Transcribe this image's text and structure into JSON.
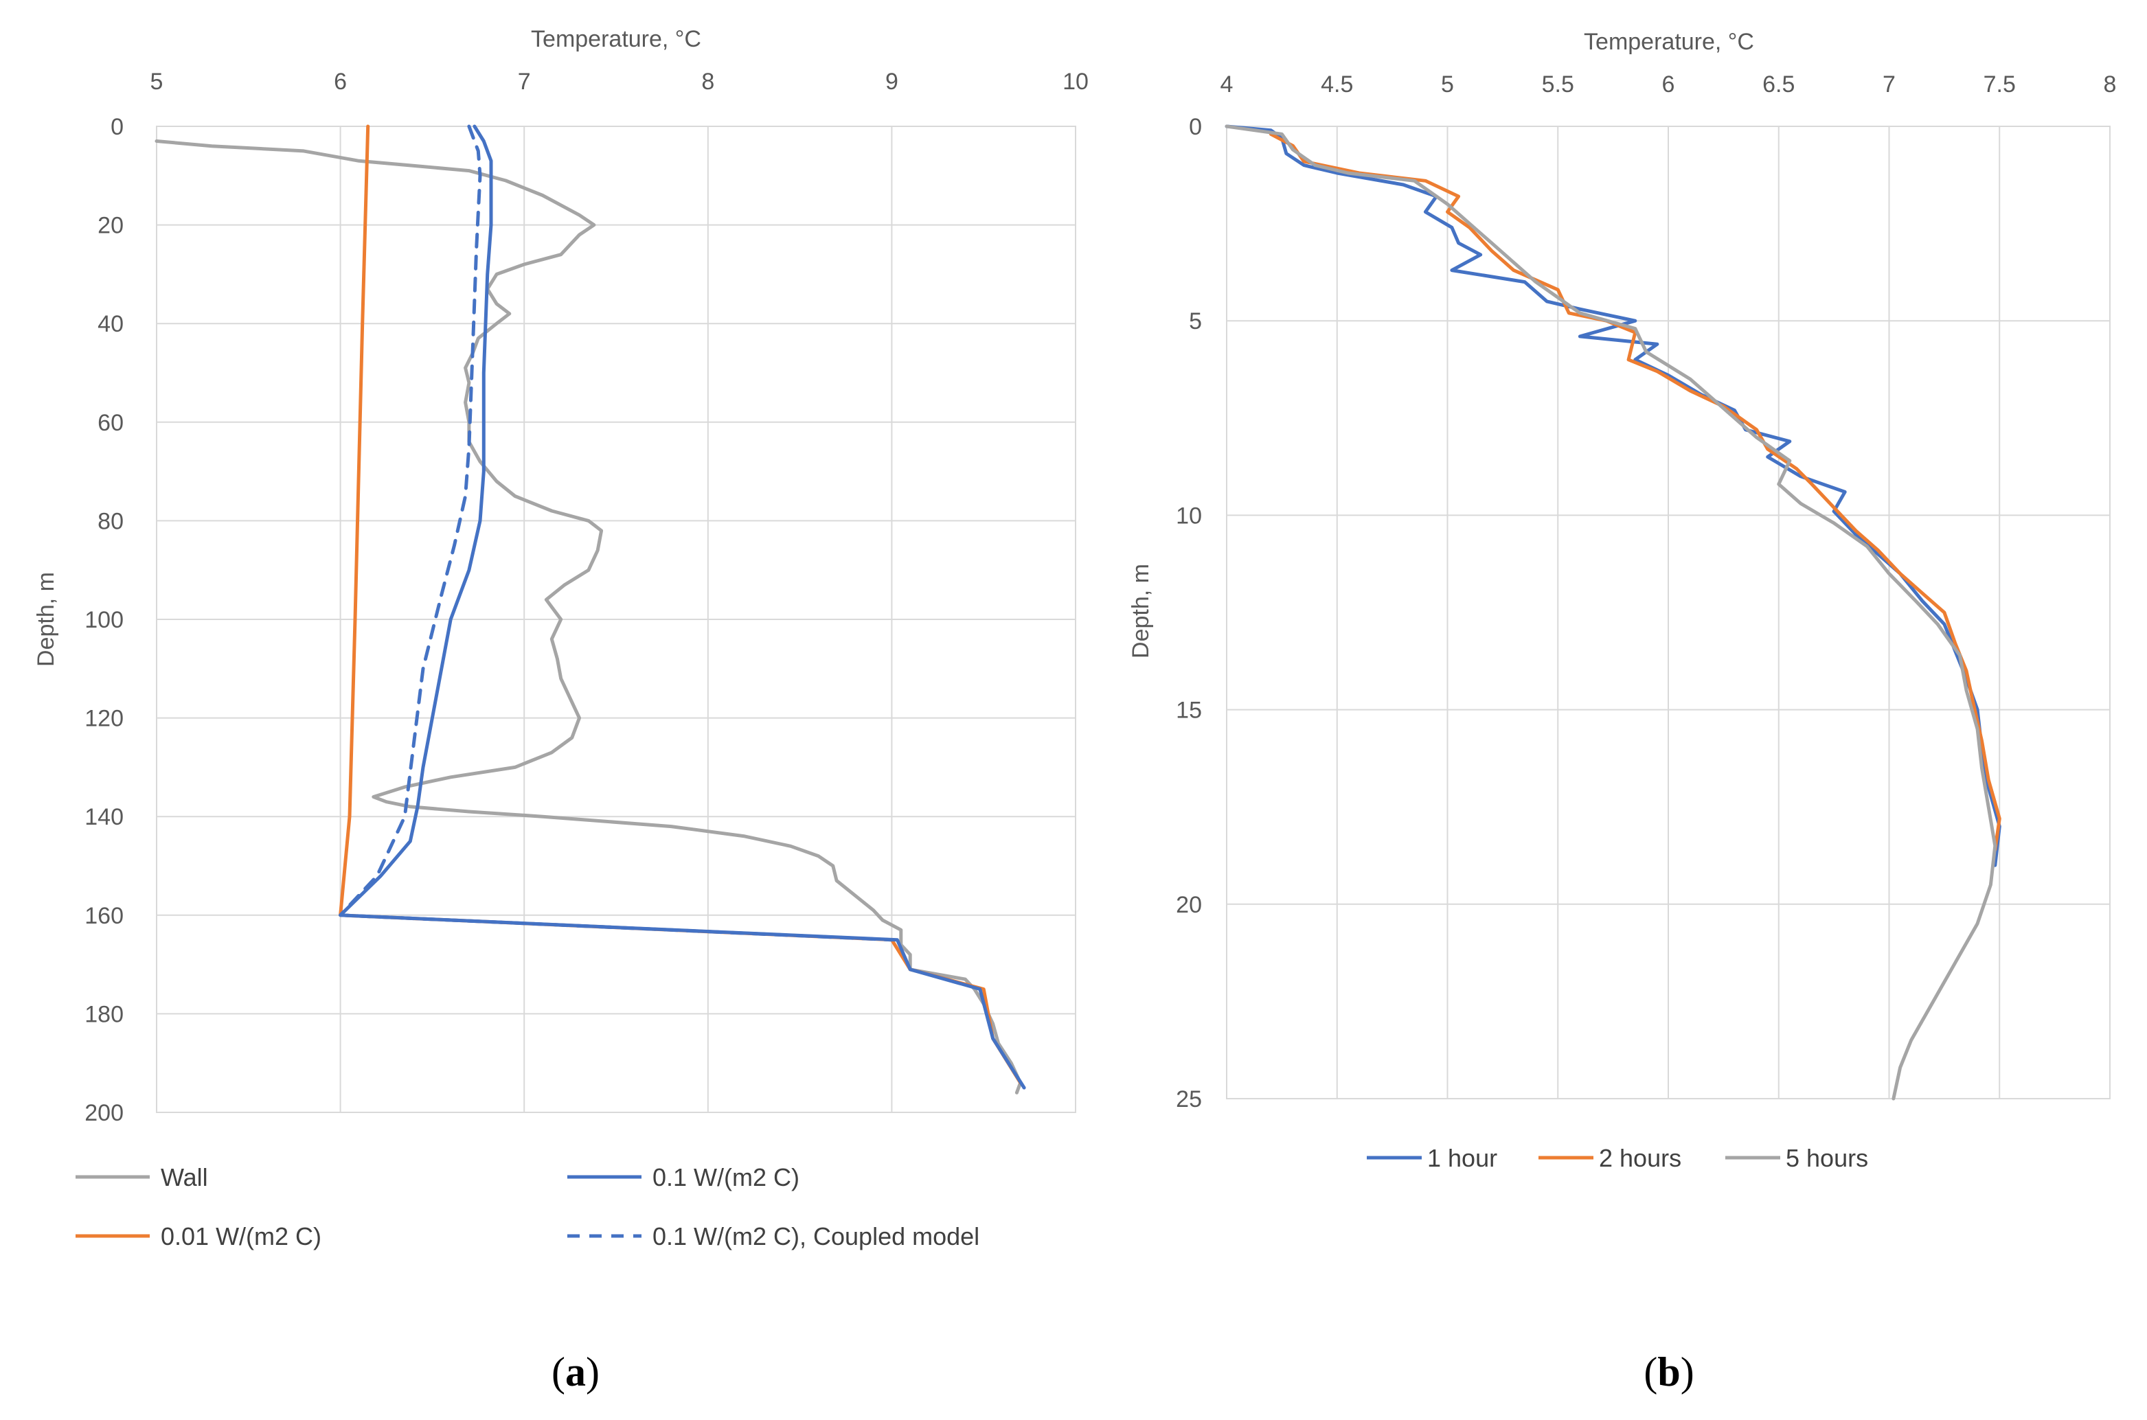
{
  "chart_data": [
    {
      "panel": "a",
      "caption": {
        "open": "(",
        "letter": "a",
        "close": ")"
      },
      "type": "line",
      "xlabel": "Temperature, °C",
      "ylabel": "Depth, m",
      "xlim": [
        5,
        10
      ],
      "ylim": [
        0,
        200
      ],
      "y_inverted": true,
      "x_axis_position": "top",
      "xticks": [
        "5",
        "6",
        "7",
        "8",
        "9",
        "10"
      ],
      "yticks": [
        "0",
        "20",
        "40",
        "60",
        "80",
        "100",
        "120",
        "140",
        "160",
        "180",
        "200"
      ],
      "grid": true,
      "legend_position": "bottom",
      "series": [
        {
          "name": "Wall",
          "color": "#A5A5A5",
          "dash": "solid",
          "points": [
            [
              5.0,
              3
            ],
            [
              5.3,
              4
            ],
            [
              5.8,
              5
            ],
            [
              6.1,
              7
            ],
            [
              6.4,
              8
            ],
            [
              6.7,
              9
            ],
            [
              6.9,
              11
            ],
            [
              7.1,
              14
            ],
            [
              7.3,
              18
            ],
            [
              7.38,
              20
            ],
            [
              7.3,
              22
            ],
            [
              7.25,
              24
            ],
            [
              7.2,
              26
            ],
            [
              7.0,
              28
            ],
            [
              6.85,
              30
            ],
            [
              6.8,
              33
            ],
            [
              6.85,
              36
            ],
            [
              6.92,
              38
            ],
            [
              6.85,
              40
            ],
            [
              6.75,
              43
            ],
            [
              6.72,
              46
            ],
            [
              6.68,
              49
            ],
            [
              6.7,
              52
            ],
            [
              6.68,
              56
            ],
            [
              6.7,
              60
            ],
            [
              6.7,
              64
            ],
            [
              6.76,
              68
            ],
            [
              6.85,
              72
            ],
            [
              6.95,
              75
            ],
            [
              7.15,
              78
            ],
            [
              7.35,
              80
            ],
            [
              7.42,
              82
            ],
            [
              7.4,
              86
            ],
            [
              7.35,
              90
            ],
            [
              7.22,
              93
            ],
            [
              7.12,
              96
            ],
            [
              7.2,
              100
            ],
            [
              7.15,
              104
            ],
            [
              7.18,
              108
            ],
            [
              7.2,
              112
            ],
            [
              7.25,
              116
            ],
            [
              7.3,
              120
            ],
            [
              7.26,
              124
            ],
            [
              7.15,
              127
            ],
            [
              6.95,
              130
            ],
            [
              6.6,
              132
            ],
            [
              6.35,
              134
            ],
            [
              6.18,
              136
            ],
            [
              6.25,
              137
            ],
            [
              6.38,
              138
            ],
            [
              6.7,
              139
            ],
            [
              7.1,
              140
            ],
            [
              7.8,
              142
            ],
            [
              8.2,
              144
            ],
            [
              8.45,
              146
            ],
            [
              8.6,
              148
            ],
            [
              8.68,
              150
            ],
            [
              8.7,
              153
            ],
            [
              8.8,
              156
            ],
            [
              8.9,
              159
            ],
            [
              8.95,
              161
            ],
            [
              9.05,
              163
            ],
            [
              9.05,
              166
            ],
            [
              9.1,
              168
            ],
            [
              9.1,
              171
            ],
            [
              9.4,
              173
            ],
            [
              9.45,
              175
            ],
            [
              9.5,
              178
            ],
            [
              9.55,
              182
            ],
            [
              9.58,
              186
            ],
            [
              9.65,
              190
            ],
            [
              9.7,
              194
            ],
            [
              9.68,
              196
            ]
          ]
        },
        {
          "name": "0.01 W/(m2 C)",
          "color": "#ED7D31",
          "dash": "solid",
          "points": [
            [
              6.15,
              0
            ],
            [
              6.12,
              40
            ],
            [
              6.08,
              100
            ],
            [
              6.05,
              140
            ],
            [
              6.0,
              160
            ],
            [
              9.0,
              165
            ],
            [
              9.1,
              171
            ],
            [
              9.5,
              175
            ],
            [
              9.55,
              185
            ],
            [
              9.7,
              194
            ]
          ]
        },
        {
          "name": "0.1 W/(m2 C)",
          "color": "#4472C4",
          "dash": "solid",
          "points": [
            [
              6.73,
              0
            ],
            [
              6.78,
              3
            ],
            [
              6.82,
              7
            ],
            [
              6.82,
              20
            ],
            [
              6.8,
              30
            ],
            [
              6.78,
              50
            ],
            [
              6.78,
              60
            ],
            [
              6.78,
              70
            ],
            [
              6.76,
              80
            ],
            [
              6.7,
              90
            ],
            [
              6.6,
              100
            ],
            [
              6.5,
              120
            ],
            [
              6.45,
              130
            ],
            [
              6.42,
              138
            ],
            [
              6.38,
              145
            ],
            [
              6.22,
              152
            ],
            [
              6.0,
              160
            ],
            [
              9.03,
              165
            ],
            [
              9.1,
              171
            ],
            [
              9.48,
              175
            ],
            [
              9.55,
              185
            ],
            [
              9.72,
              195
            ]
          ]
        },
        {
          "name": "0.1 W/(m2 C), Coupled model",
          "color": "#4472C4",
          "dash": "dashed",
          "points": [
            [
              6.7,
              0
            ],
            [
              6.75,
              5
            ],
            [
              6.76,
              10
            ],
            [
              6.74,
              25
            ],
            [
              6.72,
              45
            ],
            [
              6.7,
              65
            ],
            [
              6.68,
              75
            ],
            [
              6.62,
              85
            ],
            [
              6.55,
              95
            ],
            [
              6.45,
              110
            ],
            [
              6.4,
              125
            ],
            [
              6.35,
              140
            ],
            [
              6.2,
              152
            ],
            [
              6.0,
              160
            ],
            [
              9.0,
              165
            ]
          ]
        }
      ],
      "legend": [
        {
          "label": "Wall"
        },
        {
          "label": "0.1 W/(m2 C)"
        },
        {
          "label": "0.01 W/(m2 C)"
        },
        {
          "label": "0.1 W/(m2 C), Coupled model"
        }
      ]
    },
    {
      "panel": "b",
      "caption": {
        "open": "(",
        "letter": "b",
        "close": ")"
      },
      "type": "line",
      "xlabel": "Temperature, °C",
      "ylabel": "Depth, m",
      "xlim": [
        4,
        8
      ],
      "ylim": [
        0,
        25
      ],
      "y_inverted": true,
      "x_axis_position": "top",
      "xticks": [
        "4",
        "4.5",
        "5",
        "5.5",
        "6",
        "6.5",
        "7",
        "7.5",
        "8"
      ],
      "yticks": [
        "0",
        "5",
        "10",
        "15",
        "20",
        "25"
      ],
      "grid": true,
      "legend_position": "bottom",
      "series": [
        {
          "name": "1 hour",
          "color": "#4472C4",
          "dash": "solid",
          "points": [
            [
              4.0,
              0
            ],
            [
              4.2,
              0.1
            ],
            [
              4.25,
              0.3
            ],
            [
              4.27,
              0.7
            ],
            [
              4.35,
              1.0
            ],
            [
              4.5,
              1.2
            ],
            [
              4.8,
              1.5
            ],
            [
              4.95,
              1.8
            ],
            [
              4.9,
              2.2
            ],
            [
              5.02,
              2.6
            ],
            [
              5.05,
              3.0
            ],
            [
              5.15,
              3.3
            ],
            [
              5.02,
              3.7
            ],
            [
              5.35,
              4.0
            ],
            [
              5.45,
              4.5
            ],
            [
              5.6,
              4.7
            ],
            [
              5.85,
              5.0
            ],
            [
              5.6,
              5.4
            ],
            [
              5.95,
              5.6
            ],
            [
              5.85,
              6.0
            ],
            [
              6.0,
              6.4
            ],
            [
              6.15,
              6.9
            ],
            [
              6.3,
              7.3
            ],
            [
              6.35,
              7.8
            ],
            [
              6.55,
              8.1
            ],
            [
              6.45,
              8.5
            ],
            [
              6.6,
              9.0
            ],
            [
              6.8,
              9.4
            ],
            [
              6.75,
              9.9
            ],
            [
              6.85,
              10.5
            ],
            [
              6.95,
              11.0
            ],
            [
              7.05,
              11.5
            ],
            [
              7.15,
              12.2
            ],
            [
              7.25,
              12.8
            ],
            [
              7.3,
              13.5
            ],
            [
              7.35,
              14.2
            ],
            [
              7.4,
              15.0
            ],
            [
              7.42,
              16.0
            ],
            [
              7.45,
              17.0
            ],
            [
              7.5,
              18.0
            ],
            [
              7.48,
              19.0
            ]
          ]
        },
        {
          "name": "2 hours",
          "color": "#ED7D31",
          "dash": "solid",
          "points": [
            [
              4.2,
              0.2
            ],
            [
              4.3,
              0.5
            ],
            [
              4.35,
              0.9
            ],
            [
              4.6,
              1.2
            ],
            [
              4.9,
              1.4
            ],
            [
              5.05,
              1.8
            ],
            [
              5.0,
              2.2
            ],
            [
              5.1,
              2.6
            ],
            [
              5.2,
              3.2
            ],
            [
              5.3,
              3.7
            ],
            [
              5.5,
              4.2
            ],
            [
              5.55,
              4.8
            ],
            [
              5.72,
              5.0
            ],
            [
              5.85,
              5.3
            ],
            [
              5.82,
              6.0
            ],
            [
              5.95,
              6.3
            ],
            [
              6.1,
              6.8
            ],
            [
              6.25,
              7.2
            ],
            [
              6.4,
              7.8
            ],
            [
              6.45,
              8.3
            ],
            [
              6.58,
              8.8
            ],
            [
              6.65,
              9.2
            ],
            [
              6.75,
              9.8
            ],
            [
              6.85,
              10.4
            ],
            [
              6.95,
              10.9
            ],
            [
              7.05,
              11.5
            ],
            [
              7.15,
              12.0
            ],
            [
              7.25,
              12.5
            ],
            [
              7.3,
              13.3
            ],
            [
              7.35,
              14.0
            ],
            [
              7.38,
              14.8
            ],
            [
              7.42,
              15.8
            ],
            [
              7.45,
              16.8
            ],
            [
              7.5,
              17.8
            ],
            [
              7.48,
              18.6
            ]
          ]
        },
        {
          "name": "5 hours",
          "color": "#A5A5A5",
          "dash": "solid",
          "points": [
            [
              4.0,
              0
            ],
            [
              4.25,
              0.2
            ],
            [
              4.3,
              0.6
            ],
            [
              4.4,
              1.0
            ],
            [
              4.55,
              1.2
            ],
            [
              4.85,
              1.4
            ],
            [
              5.0,
              2.0
            ],
            [
              5.1,
              2.5
            ],
            [
              5.2,
              3.0
            ],
            [
              5.3,
              3.5
            ],
            [
              5.4,
              4.0
            ],
            [
              5.6,
              4.8
            ],
            [
              5.85,
              5.2
            ],
            [
              5.9,
              5.8
            ],
            [
              6.1,
              6.5
            ],
            [
              6.2,
              7.0
            ],
            [
              6.3,
              7.5
            ],
            [
              6.4,
              8.0
            ],
            [
              6.55,
              8.6
            ],
            [
              6.5,
              9.2
            ],
            [
              6.6,
              9.7
            ],
            [
              6.75,
              10.2
            ],
            [
              6.9,
              10.8
            ],
            [
              7.0,
              11.5
            ],
            [
              7.12,
              12.2
            ],
            [
              7.22,
              12.8
            ],
            [
              7.32,
              13.6
            ],
            [
              7.35,
              14.5
            ],
            [
              7.4,
              15.5
            ],
            [
              7.42,
              16.5
            ],
            [
              7.45,
              17.5
            ],
            [
              7.48,
              18.5
            ],
            [
              7.46,
              19.5
            ],
            [
              7.4,
              20.5
            ],
            [
              7.3,
              21.5
            ],
            [
              7.2,
              22.5
            ],
            [
              7.1,
              23.5
            ],
            [
              7.05,
              24.2
            ],
            [
              7.02,
              25
            ]
          ]
        }
      ],
      "legend": [
        {
          "label": "1 hour"
        },
        {
          "label": "2 hours"
        },
        {
          "label": "5 hours"
        }
      ]
    }
  ]
}
